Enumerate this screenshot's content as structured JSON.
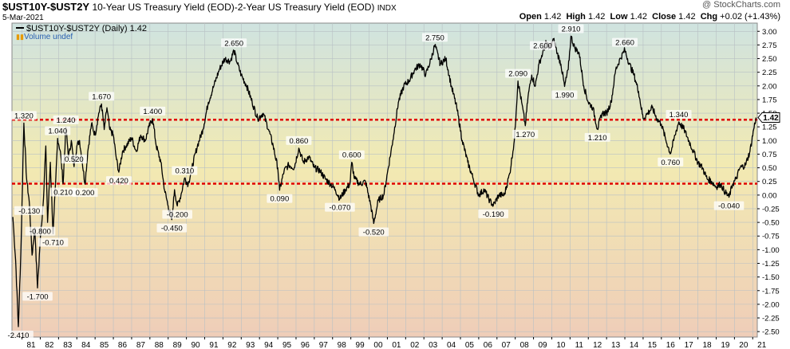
{
  "header": {
    "symbol": "$UST10Y-$UST2Y",
    "description": "10-Year US Treasury Yield (EOD)-2-Year US Treasury Yield (EOD)",
    "exchange": "INDX",
    "date": "5-Mar-2021",
    "ohlc": {
      "open_label": "Open",
      "open": "1.42",
      "high_label": "High",
      "high": "1.42",
      "low_label": "Low",
      "low": "1.42",
      "close_label": "Close",
      "close": "1.42",
      "chg_label": "Chg",
      "chg": "+0.02 (+1.43%)"
    },
    "watermark": "@ StockCharts.com"
  },
  "legend": {
    "series_label": "$UST10Y-$UST2Y (Daily) 1.42",
    "volume_label": "Volume undef"
  },
  "colors": {
    "line": "#000000",
    "reference": "#e00000",
    "grid": "#b8c0c4",
    "bg_top": "#cfe3e0",
    "bg_mid": "#f2eab2",
    "bg_bottom": "#efcdb8"
  },
  "chart_data": {
    "type": "line",
    "title": "$UST10Y-$UST2Y",
    "x_unit": "year",
    "xlim": [
      1980.45,
      2021.25
    ],
    "ylim": [
      -2.6,
      3.15
    ],
    "x_ticks": [
      "81",
      "82",
      "83",
      "84",
      "85",
      "86",
      "87",
      "88",
      "89",
      "90",
      "91",
      "92",
      "93",
      "94",
      "95",
      "96",
      "97",
      "98",
      "99",
      "00",
      "01",
      "02",
      "03",
      "04",
      "05",
      "06",
      "07",
      "08",
      "09",
      "10",
      "11",
      "12",
      "13",
      "14",
      "15",
      "16",
      "17",
      "18",
      "19",
      "20",
      "21"
    ],
    "y_ticks": [
      "3.00",
      "2.75",
      "2.50",
      "2.25",
      "2.00",
      "1.75",
      "1.50",
      "1.25",
      "1.00",
      "0.75",
      "0.50",
      "0.25",
      "0.00",
      "-0.25",
      "-0.50",
      "-0.75",
      "-1.00",
      "-1.25",
      "-1.50",
      "-1.75",
      "-2.00",
      "-2.25",
      "-2.50"
    ],
    "reference_lines": [
      1.38,
      0.21
    ],
    "last_value": "1.42",
    "grid": true,
    "legend_position": "top-left",
    "series": [
      {
        "values": [
          [
            1980.5,
            -0.4
          ],
          [
            1980.65,
            -1.2
          ],
          [
            1980.8,
            -2.41
          ],
          [
            1980.95,
            -0.9
          ],
          [
            1981.1,
            1.32
          ],
          [
            1981.25,
            0.3
          ],
          [
            1981.4,
            -0.13
          ],
          [
            1981.55,
            -1.1
          ],
          [
            1981.7,
            -0.6
          ],
          [
            1981.85,
            -1.7
          ],
          [
            1982.0,
            -0.8
          ],
          [
            1982.15,
            -0.2
          ],
          [
            1982.3,
            0.9
          ],
          [
            1982.4,
            -0.5
          ],
          [
            1982.55,
            0.6
          ],
          [
            1982.7,
            -0.71
          ],
          [
            1982.85,
            0.3
          ],
          [
            1982.95,
            1.04
          ],
          [
            1983.1,
            0.8
          ],
          [
            1983.25,
            0.21
          ],
          [
            1983.4,
            1.24
          ],
          [
            1983.55,
            0.7
          ],
          [
            1983.7,
            1.0
          ],
          [
            1983.85,
            0.52
          ],
          [
            1984.0,
            0.9
          ],
          [
            1984.15,
            1.0
          ],
          [
            1984.3,
            0.6
          ],
          [
            1984.45,
            0.2
          ],
          [
            1984.6,
            0.8
          ],
          [
            1984.8,
            1.3
          ],
          [
            1985.0,
            1.1
          ],
          [
            1985.2,
            1.5
          ],
          [
            1985.35,
            1.67
          ],
          [
            1985.5,
            1.2
          ],
          [
            1985.65,
            1.6
          ],
          [
            1985.8,
            1.2
          ],
          [
            1986.0,
            1.1
          ],
          [
            1986.15,
            0.7
          ],
          [
            1986.3,
            0.42
          ],
          [
            1986.5,
            0.8
          ],
          [
            1986.7,
            0.9
          ],
          [
            1987.0,
            1.05
          ],
          [
            1987.25,
            0.8
          ],
          [
            1987.5,
            1.1
          ],
          [
            1987.75,
            1.0
          ],
          [
            1987.95,
            1.25
          ],
          [
            1988.15,
            1.4
          ],
          [
            1988.35,
            0.9
          ],
          [
            1988.6,
            0.6
          ],
          [
            1988.8,
            0.1
          ],
          [
            1989.0,
            -0.2
          ],
          [
            1989.2,
            -0.45
          ],
          [
            1989.35,
            0.1
          ],
          [
            1989.5,
            -0.2
          ],
          [
            1989.7,
            0.0
          ],
          [
            1989.9,
            0.31
          ],
          [
            1990.1,
            0.2
          ],
          [
            1990.3,
            0.5
          ],
          [
            1990.6,
            0.9
          ],
          [
            1990.9,
            1.2
          ],
          [
            1991.2,
            1.7
          ],
          [
            1991.5,
            2.0
          ],
          [
            1991.8,
            2.3
          ],
          [
            1992.1,
            2.5
          ],
          [
            1992.4,
            2.45
          ],
          [
            1992.6,
            2.65
          ],
          [
            1992.8,
            2.4
          ],
          [
            1993.0,
            2.2
          ],
          [
            1993.3,
            2.0
          ],
          [
            1993.6,
            1.7
          ],
          [
            1993.9,
            1.4
          ],
          [
            1994.2,
            1.5
          ],
          [
            1994.5,
            1.2
          ],
          [
            1994.75,
            0.9
          ],
          [
            1995.0,
            0.5
          ],
          [
            1995.1,
            0.09
          ],
          [
            1995.35,
            0.45
          ],
          [
            1995.6,
            0.55
          ],
          [
            1995.9,
            0.5
          ],
          [
            1996.15,
            0.86
          ],
          [
            1996.4,
            0.6
          ],
          [
            1996.7,
            0.7
          ],
          [
            1997.0,
            0.5
          ],
          [
            1997.3,
            0.45
          ],
          [
            1997.6,
            0.3
          ],
          [
            1997.9,
            0.2
          ],
          [
            1998.15,
            0.1
          ],
          [
            1998.4,
            -0.07
          ],
          [
            1998.7,
            0.1
          ],
          [
            1998.95,
            0.2
          ],
          [
            1999.05,
            0.6
          ],
          [
            1999.2,
            0.3
          ],
          [
            1999.5,
            0.2
          ],
          [
            1999.8,
            0.25
          ],
          [
            2000.1,
            -0.2
          ],
          [
            2000.25,
            -0.52
          ],
          [
            2000.5,
            -0.1
          ],
          [
            2000.8,
            0.0
          ],
          [
            2001.0,
            0.4
          ],
          [
            2001.3,
            1.0
          ],
          [
            2001.6,
            1.7
          ],
          [
            2001.9,
            2.0
          ],
          [
            2002.2,
            2.1
          ],
          [
            2002.5,
            2.3
          ],
          [
            2002.8,
            2.4
          ],
          [
            2003.1,
            2.2
          ],
          [
            2003.4,
            2.5
          ],
          [
            2003.6,
            2.75
          ],
          [
            2003.9,
            2.4
          ],
          [
            2004.2,
            2.5
          ],
          [
            2004.5,
            2.0
          ],
          [
            2004.8,
            1.6
          ],
          [
            2005.1,
            1.0
          ],
          [
            2005.4,
            0.6
          ],
          [
            2005.7,
            0.3
          ],
          [
            2006.0,
            0.0
          ],
          [
            2006.3,
            0.1
          ],
          [
            2006.6,
            -0.1
          ],
          [
            2006.8,
            -0.19
          ],
          [
            2007.1,
            0.0
          ],
          [
            2007.4,
            0.0
          ],
          [
            2007.7,
            0.4
          ],
          [
            2007.95,
            1.0
          ],
          [
            2008.15,
            2.09
          ],
          [
            2008.35,
            1.7
          ],
          [
            2008.55,
            1.27
          ],
          [
            2008.7,
            1.8
          ],
          [
            2008.9,
            2.2
          ],
          [
            2009.1,
            2.0
          ],
          [
            2009.3,
            2.4
          ],
          [
            2009.5,
            2.6
          ],
          [
            2009.7,
            2.8
          ],
          [
            2009.9,
            2.7
          ],
          [
            2010.1,
            2.85
          ],
          [
            2010.3,
            2.6
          ],
          [
            2010.5,
            2.4
          ],
          [
            2010.7,
            1.99
          ],
          [
            2010.9,
            2.3
          ],
          [
            2011.05,
            2.91
          ],
          [
            2011.25,
            2.7
          ],
          [
            2011.5,
            2.6
          ],
          [
            2011.75,
            2.0
          ],
          [
            2012.0,
            1.7
          ],
          [
            2012.25,
            1.6
          ],
          [
            2012.5,
            1.21
          ],
          [
            2012.75,
            1.5
          ],
          [
            2013.0,
            1.5
          ],
          [
            2013.25,
            1.7
          ],
          [
            2013.5,
            2.3
          ],
          [
            2013.75,
            2.5
          ],
          [
            2014.0,
            2.66
          ],
          [
            2014.25,
            2.4
          ],
          [
            2014.5,
            2.2
          ],
          [
            2014.75,
            1.9
          ],
          [
            2015.0,
            1.4
          ],
          [
            2015.25,
            1.5
          ],
          [
            2015.5,
            1.6
          ],
          [
            2015.75,
            1.4
          ],
          [
            2016.0,
            1.3
          ],
          [
            2016.25,
            1.0
          ],
          [
            2016.5,
            0.76
          ],
          [
            2016.75,
            1.1
          ],
          [
            2016.95,
            1.34
          ],
          [
            2017.25,
            1.2
          ],
          [
            2017.5,
            1.0
          ],
          [
            2017.75,
            0.8
          ],
          [
            2018.0,
            0.6
          ],
          [
            2018.25,
            0.5
          ],
          [
            2018.5,
            0.3
          ],
          [
            2018.75,
            0.25
          ],
          [
            2019.0,
            0.15
          ],
          [
            2019.25,
            0.2
          ],
          [
            2019.5,
            0.05
          ],
          [
            2019.7,
            -0.04
          ],
          [
            2019.9,
            0.2
          ],
          [
            2020.1,
            0.3
          ],
          [
            2020.3,
            0.5
          ],
          [
            2020.6,
            0.55
          ],
          [
            2020.85,
            0.8
          ],
          [
            2021.05,
            1.2
          ],
          [
            2021.18,
            1.42
          ]
        ]
      }
    ],
    "annotations": [
      {
        "text": "-2.410",
        "x": 1980.8,
        "y": -2.41,
        "pos": "below"
      },
      {
        "text": "1.320",
        "x": 1981.1,
        "y": 1.32,
        "pos": "above"
      },
      {
        "text": "-0.130",
        "x": 1981.4,
        "y": -0.13,
        "pos": "below"
      },
      {
        "text": "-1.700",
        "x": 1981.85,
        "y": -1.7,
        "pos": "below"
      },
      {
        "text": "-0.800",
        "x": 1982.0,
        "y": -0.8,
        "pos": "above"
      },
      {
        "text": "-0.710",
        "x": 1982.7,
        "y": -0.71,
        "pos": "below"
      },
      {
        "text": "1.040",
        "x": 1982.95,
        "y": 1.04,
        "pos": "above"
      },
      {
        "text": "0.210",
        "x": 1983.25,
        "y": 0.21,
        "pos": "below"
      },
      {
        "text": "1.240",
        "x": 1983.4,
        "y": 1.24,
        "pos": "above"
      },
      {
        "text": "0.520",
        "x": 1983.85,
        "y": 0.52,
        "pos": "above"
      },
      {
        "text": "0.200",
        "x": 1984.45,
        "y": 0.2,
        "pos": "below"
      },
      {
        "text": "1.670",
        "x": 1985.35,
        "y": 1.67,
        "pos": "above"
      },
      {
        "text": "0.420",
        "x": 1986.3,
        "y": 0.42,
        "pos": "below"
      },
      {
        "text": "1.400",
        "x": 1988.15,
        "y": 1.4,
        "pos": "above"
      },
      {
        "text": "-0.450",
        "x": 1989.2,
        "y": -0.45,
        "pos": "below"
      },
      {
        "text": "0.310",
        "x": 1989.9,
        "y": 0.31,
        "pos": "above"
      },
      {
        "text": "-0.200",
        "x": 1989.5,
        "y": -0.2,
        "pos": "below"
      },
      {
        "text": "2.650",
        "x": 1992.6,
        "y": 2.65,
        "pos": "above"
      },
      {
        "text": "0.090",
        "x": 1995.1,
        "y": 0.09,
        "pos": "below"
      },
      {
        "text": "0.860",
        "x": 1996.15,
        "y": 0.86,
        "pos": "above"
      },
      {
        "text": "-0.070",
        "x": 1998.4,
        "y": -0.07,
        "pos": "below"
      },
      {
        "text": "0.600",
        "x": 1999.05,
        "y": 0.6,
        "pos": "above"
      },
      {
        "text": "-0.520",
        "x": 2000.25,
        "y": -0.52,
        "pos": "below"
      },
      {
        "text": "2.750",
        "x": 2003.6,
        "y": 2.75,
        "pos": "above"
      },
      {
        "text": "-0.190",
        "x": 2006.8,
        "y": -0.19,
        "pos": "below"
      },
      {
        "text": "2.090",
        "x": 2008.15,
        "y": 2.09,
        "pos": "above"
      },
      {
        "text": "1.270",
        "x": 2008.55,
        "y": 1.27,
        "pos": "below"
      },
      {
        "text": "2.600",
        "x": 2009.5,
        "y": 2.6,
        "pos": "above"
      },
      {
        "text": "1.990",
        "x": 2010.7,
        "y": 1.99,
        "pos": "below"
      },
      {
        "text": "2.910",
        "x": 2011.05,
        "y": 2.91,
        "pos": "above"
      },
      {
        "text": "1.210",
        "x": 2012.5,
        "y": 1.21,
        "pos": "below"
      },
      {
        "text": "2.660",
        "x": 2014.0,
        "y": 2.66,
        "pos": "above"
      },
      {
        "text": "1.340",
        "x": 2016.95,
        "y": 1.34,
        "pos": "above"
      },
      {
        "text": "0.760",
        "x": 2016.5,
        "y": 0.76,
        "pos": "below"
      },
      {
        "text": "-0.040",
        "x": 2019.7,
        "y": -0.04,
        "pos": "below"
      }
    ]
  }
}
